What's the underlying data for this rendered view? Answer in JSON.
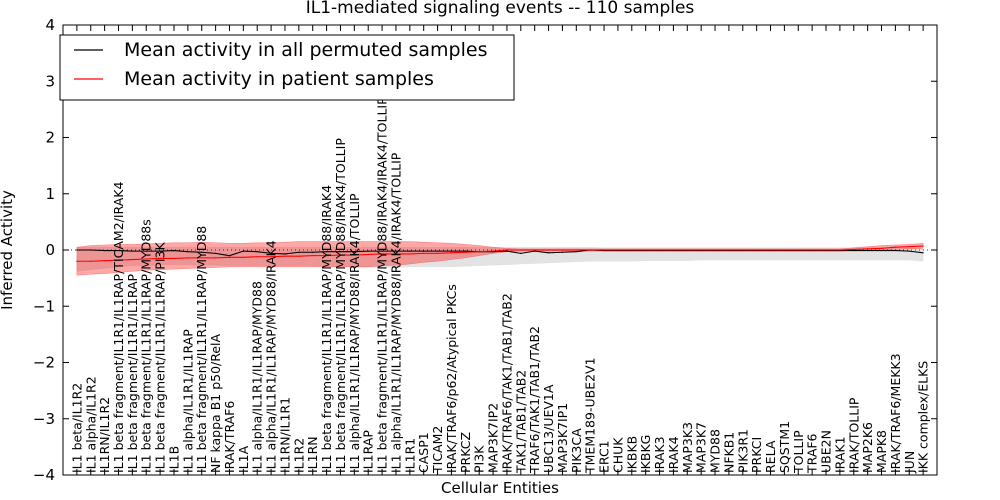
{
  "chart_data": {
    "type": "line",
    "title": "IL1-mediated signaling events -- 110 samples",
    "xlabel": "Cellular Entities",
    "ylabel": "Inferred Activity",
    "ylim": [
      -4,
      4
    ],
    "yticks": [
      -4,
      -3,
      -2,
      -1,
      0,
      1,
      2,
      3,
      4
    ],
    "ytick_labels": [
      "−4",
      "−3",
      "−2",
      "−1",
      "0",
      "1",
      "2",
      "3",
      "4"
    ],
    "legend_position": "top-left",
    "categories": [
      "IL1 beta/IL1R2",
      "IL1 alpha/IL1R2",
      "IL1RN/IL1R2",
      "IL1 beta fragment/IL1R1/IL1RAP/TICAM2/IRAK4",
      "IL1 beta fragment/IL1R1/IL1RAP",
      "IL1 beta fragment/IL1R1/IL1RAP/MYD88s",
      "IL1 beta fragment/IL1R1/IL1RAP/PI3K",
      "IL1B",
      "IL1 alpha/IL1R1/IL1RAP",
      "IL1 beta fragment/IL1R1/IL1RAP/MYD88",
      "NF kappa B1 p50/RelA",
      "IRAK/TRAF6",
      "IL1A",
      "IL1 alpha/IL1R1/IL1RAP/MYD88",
      "IL1 alpha/IL1R1/IL1RAP/MYD88/IRAK4",
      "IL1RN/IL1R1",
      "IL1R2",
      "IL1RN",
      "IL1 beta fragment/IL1R1/IL1RAP/MYD88/IRAK4",
      "IL1 beta fragment/IL1R1/IL1RAP/MYD88/IRAK4/TOLLIP",
      "IL1 alpha/IL1R1/IL1RAP/MYD88/IRAK4/TOLLIP",
      "IL1RAP",
      "IL1 beta fragment/IL1R1/IL1RAP/MYD88/IRAK4/IRAK4/TOLLIP",
      "IL1 alpha/IL1R1/IL1RAP/MYD88/IRAK4/IRAK4/TOLLIP",
      "IL1R1",
      "CASP1",
      "TICAM2",
      "IRAK/TRAF6/p62/Atypical PKCs",
      "PRKCZ",
      "PI3K",
      "MAP3K7IP2",
      "IRAK/TRAF6/TAK1/TAB1/TAB2",
      "TAK1/TAB1/TAB2",
      "TRAF6/TAK1/TAB1/TAB2",
      "UBC13/UEV1A",
      "MAP3K7IP1",
      "PIK3CA",
      "TMEM189-UBE2V1",
      "ERC1",
      "CHUK",
      "IKBKB",
      "IKBKG",
      "IRAK3",
      "IRAK4",
      "MAP3K3",
      "MAP3K7",
      "MYD88",
      "NFKB1",
      "PIK3R1",
      "PRKCI",
      "RELA",
      "SQSTM1",
      "TOLLIP",
      "TRAF6",
      "UBE2N",
      "IRAK1",
      "IRAK/TOLLIP",
      "MAP2K6",
      "MAPK8",
      "IRAK/TRAF6/MEKK3",
      "JUN",
      "IKK complex/ELKS"
    ],
    "series": [
      {
        "name": "Mean activity in all permuted samples",
        "color": "#000000",
        "band_color": "#cccccc",
        "values": [
          0.0,
          0.0,
          -0.01,
          -0.01,
          -0.02,
          -0.02,
          -0.02,
          -0.01,
          -0.03,
          -0.04,
          -0.06,
          -0.1,
          -0.02,
          -0.03,
          -0.06,
          -0.07,
          -0.04,
          -0.04,
          -0.03,
          -0.03,
          -0.03,
          -0.02,
          -0.02,
          -0.02,
          -0.02,
          -0.02,
          -0.02,
          -0.02,
          -0.02,
          -0.03,
          -0.03,
          -0.02,
          -0.06,
          -0.02,
          -0.05,
          -0.04,
          -0.03,
          0.0,
          -0.01,
          -0.01,
          -0.01,
          -0.01,
          -0.01,
          -0.01,
          -0.01,
          -0.01,
          -0.01,
          -0.01,
          -0.01,
          -0.01,
          -0.01,
          -0.01,
          -0.01,
          -0.01,
          -0.01,
          -0.01,
          -0.01,
          -0.01,
          -0.01,
          -0.01,
          -0.02,
          -0.05
        ],
        "upper": [
          0.05,
          0.05,
          0.05,
          0.05,
          0.05,
          0.05,
          0.05,
          0.05,
          0.05,
          0.05,
          0.05,
          0.05,
          0.05,
          0.05,
          0.05,
          0.05,
          0.05,
          0.05,
          0.05,
          0.05,
          0.05,
          0.05,
          0.05,
          0.05,
          0.05,
          0.05,
          0.05,
          0.05,
          0.05,
          0.05,
          0.05,
          0.05,
          0.05,
          0.05,
          0.05,
          0.05,
          0.05,
          0.05,
          0.04,
          0.04,
          0.04,
          0.04,
          0.04,
          0.04,
          0.04,
          0.04,
          0.04,
          0.04,
          0.04,
          0.04,
          0.04,
          0.04,
          0.04,
          0.04,
          0.04,
          0.04,
          0.04,
          0.04,
          0.04,
          0.04,
          0.04,
          0.04
        ],
        "lower": [
          -0.38,
          -0.35,
          -0.33,
          -0.3,
          -0.28,
          -0.28,
          -0.27,
          -0.26,
          -0.26,
          -0.27,
          -0.27,
          -0.28,
          -0.28,
          -0.28,
          -0.28,
          -0.28,
          -0.28,
          -0.28,
          -0.29,
          -0.29,
          -0.3,
          -0.31,
          -0.31,
          -0.31,
          -0.3,
          -0.3,
          -0.3,
          -0.3,
          -0.29,
          -0.28,
          -0.27,
          -0.26,
          -0.25,
          -0.24,
          -0.23,
          -0.22,
          -0.21,
          -0.2,
          -0.2,
          -0.2,
          -0.2,
          -0.19,
          -0.19,
          -0.19,
          -0.19,
          -0.18,
          -0.18,
          -0.18,
          -0.18,
          -0.18,
          -0.18,
          -0.18,
          -0.18,
          -0.18,
          -0.18,
          -0.18,
          -0.18,
          -0.18,
          -0.18,
          -0.18,
          -0.18,
          -0.2
        ]
      },
      {
        "name": "Mean activity in patient samples",
        "color": "#ff0000",
        "band_color": "#ff0000",
        "values": [
          -0.2,
          -0.2,
          -0.19,
          -0.18,
          -0.17,
          -0.16,
          -0.15,
          -0.15,
          -0.14,
          -0.14,
          -0.14,
          -0.13,
          -0.13,
          -0.12,
          -0.12,
          -0.11,
          -0.11,
          -0.1,
          -0.1,
          -0.09,
          -0.09,
          -0.08,
          -0.07,
          -0.07,
          -0.07,
          -0.06,
          -0.06,
          -0.05,
          -0.04,
          -0.03,
          -0.02,
          0.0,
          0.0,
          0.0,
          0.0,
          0.0,
          0.0,
          0.0,
          0.0,
          0.0,
          0.0,
          0.0,
          0.0,
          0.0,
          0.0,
          0.0,
          0.0,
          0.0,
          0.0,
          0.0,
          0.0,
          0.0,
          0.0,
          0.0,
          0.0,
          0.0,
          0.01,
          0.02,
          0.03,
          0.05,
          0.06,
          0.07
        ],
        "upper": [
          0.05,
          0.08,
          0.09,
          0.1,
          0.1,
          0.11,
          0.12,
          0.13,
          0.13,
          0.14,
          0.13,
          0.12,
          0.12,
          0.13,
          0.13,
          0.14,
          0.15,
          0.15,
          0.15,
          0.15,
          0.15,
          0.15,
          0.15,
          0.15,
          0.15,
          0.14,
          0.13,
          0.12,
          0.1,
          0.08,
          0.05,
          0.03,
          0.02,
          0.02,
          0.02,
          0.02,
          0.02,
          0.02,
          0.02,
          0.02,
          0.02,
          0.02,
          0.02,
          0.02,
          0.02,
          0.02,
          0.02,
          0.02,
          0.02,
          0.02,
          0.02,
          0.02,
          0.02,
          0.02,
          0.02,
          0.02,
          0.04,
          0.06,
          0.08,
          0.09,
          0.1,
          0.12
        ],
        "lower": [
          -0.45,
          -0.43,
          -0.42,
          -0.4,
          -0.38,
          -0.36,
          -0.35,
          -0.34,
          -0.33,
          -0.32,
          -0.31,
          -0.3,
          -0.3,
          -0.3,
          -0.3,
          -0.3,
          -0.3,
          -0.3,
          -0.3,
          -0.3,
          -0.3,
          -0.3,
          -0.28,
          -0.27,
          -0.25,
          -0.22,
          -0.2,
          -0.17,
          -0.14,
          -0.1,
          -0.06,
          -0.03,
          -0.02,
          -0.02,
          -0.02,
          -0.02,
          -0.02,
          -0.02,
          -0.02,
          -0.02,
          -0.02,
          -0.02,
          -0.02,
          -0.02,
          -0.02,
          -0.02,
          -0.02,
          -0.02,
          -0.02,
          -0.02,
          -0.02,
          -0.02,
          -0.02,
          -0.02,
          -0.02,
          -0.02,
          -0.01,
          0.0,
          0.0,
          0.01,
          0.02,
          0.03
        ]
      }
    ]
  }
}
